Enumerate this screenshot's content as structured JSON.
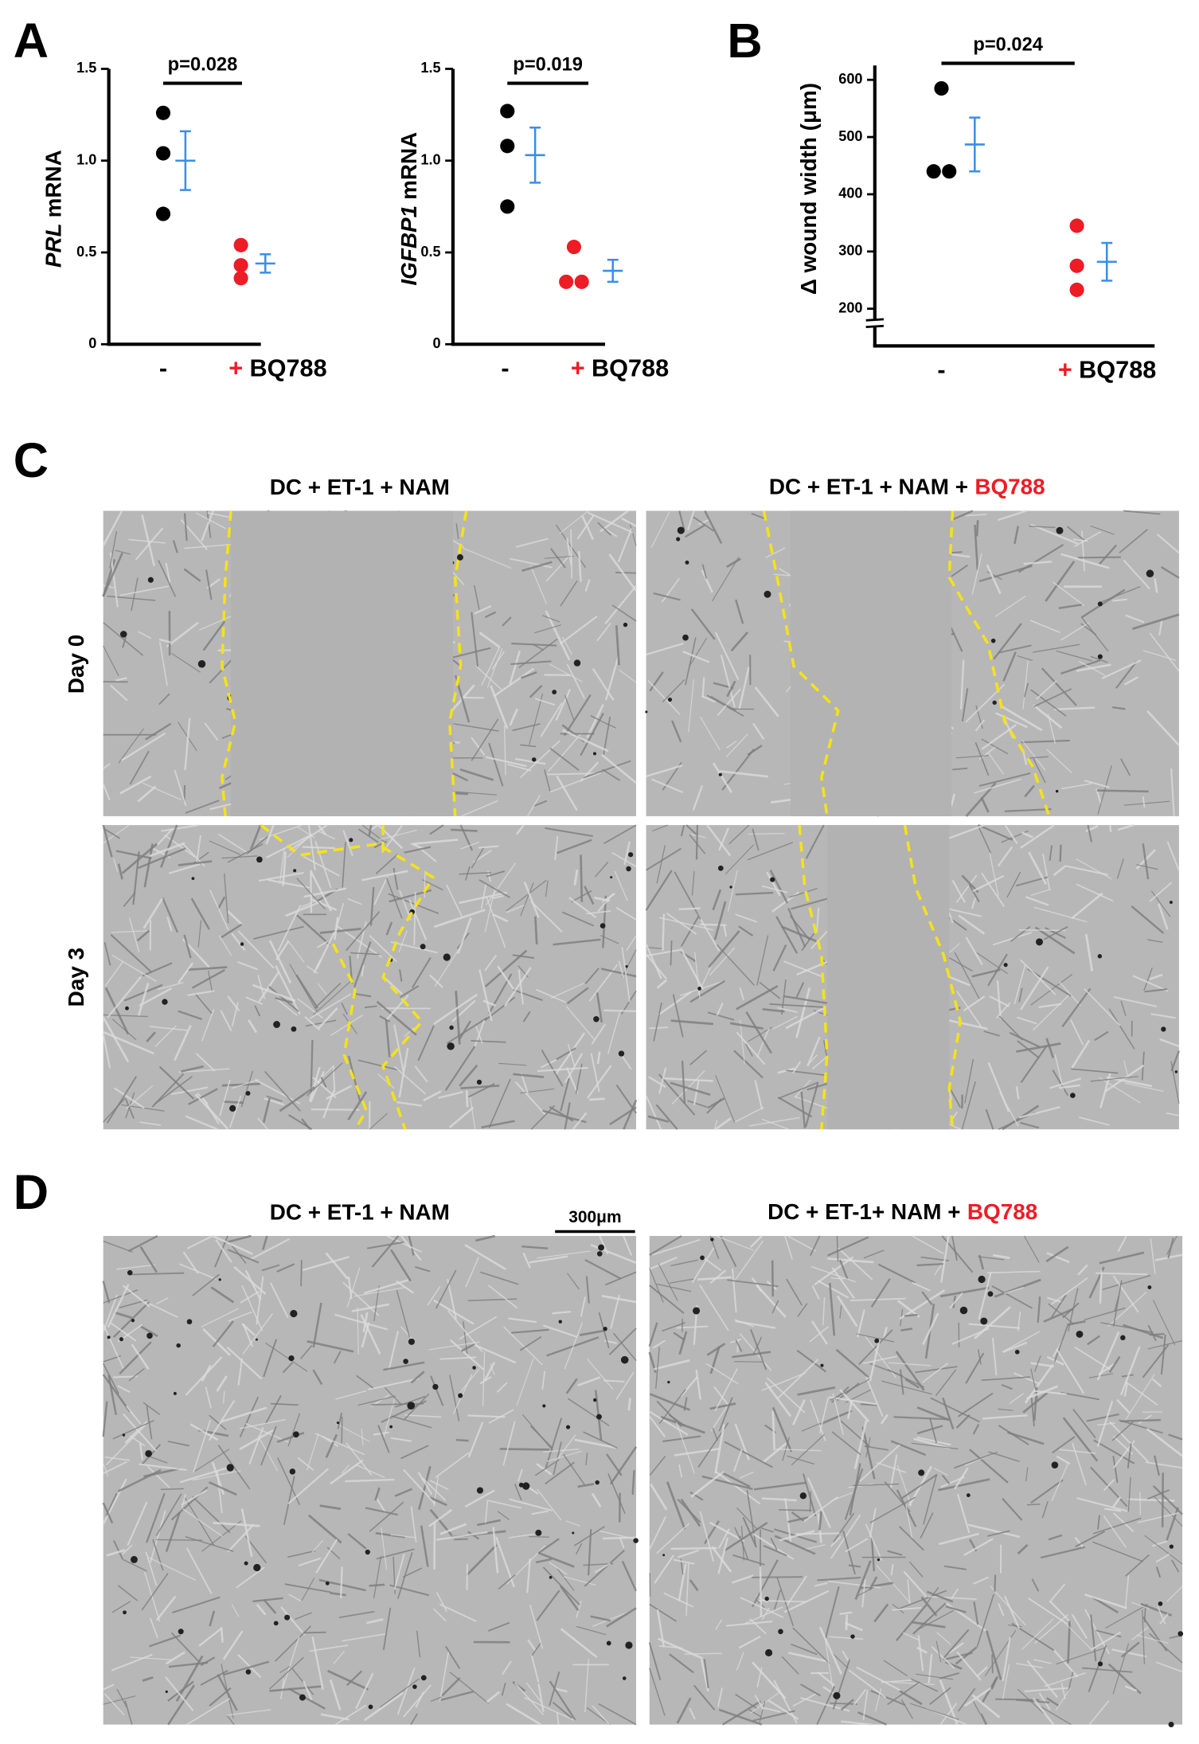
{
  "panel_a": "A",
  "panel_b": "B",
  "chart_data": [
    {
      "type": "strip",
      "ylabel_italic": "PRL",
      "ylabel": "mRNA",
      "categories": [
        "-",
        "BQ788"
      ],
      "treatment_sign": "+",
      "points": [
        [
          1.26,
          1.04,
          0.71
        ],
        [
          0.54,
          0.43,
          0.36
        ]
      ],
      "means": [
        1.0,
        0.44
      ],
      "errors": [
        0.16,
        0.05
      ],
      "point_colors": [
        "#000000",
        "#ee1c25"
      ],
      "mean_color": "#3a8ee6",
      "ylim": [
        0,
        1.5
      ],
      "yticks": [
        0,
        0.5,
        {
          "value": 1,
          "label": "1.0"
        },
        1.5
      ],
      "annotation": "p=0.028"
    },
    {
      "type": "strip",
      "ylabel_italic": "IGFBP1",
      "ylabel": "mRNA",
      "categories": [
        "-",
        "BQ788"
      ],
      "treatment_sign": "+",
      "points": [
        [
          1.27,
          1.08,
          0.75
        ],
        [
          0.53,
          0.34,
          0.34
        ]
      ],
      "means": [
        1.03,
        0.4
      ],
      "errors": [
        0.15,
        0.06
      ],
      "point_colors": [
        "#000000",
        "#ee1c25"
      ],
      "mean_color": "#3a8ee6",
      "ylim": [
        0,
        1.5
      ],
      "yticks": [
        0,
        0.5,
        {
          "value": 1,
          "label": "1.0"
        },
        1.5
      ],
      "annotation": "p=0.019"
    },
    {
      "type": "strip",
      "ylabel": "Δ wound width (μm)",
      "categories": [
        "-",
        "BQ788"
      ],
      "treatment_sign": "+",
      "points": [
        [
          585,
          440,
          440
        ],
        [
          345,
          275,
          233
        ]
      ],
      "means": [
        487,
        282
      ],
      "errors": [
        47,
        33
      ],
      "point_colors": [
        "#000000",
        "#ee1c25"
      ],
      "mean_color": "#3a8ee6",
      "ylim": [
        135,
        625
      ],
      "yticks": [
        200,
        300,
        400,
        500,
        600
      ],
      "axis_break": true,
      "annotation": "p=0.024"
    }
  ],
  "panel_c": {
    "label": "C",
    "left_title": "DC + ET-1 + NAM",
    "right_title": "DC + ET-1 + NAM +",
    "right_title_highlight": "BQ788",
    "rows": [
      "Day 0",
      "Day 3"
    ]
  },
  "panel_d": {
    "label": "D",
    "left_title": "DC + ET-1 + NAM",
    "right_title": "DC + ET-1+ NAM +",
    "right_title_highlight": "BQ788",
    "scale_bar": "300μm"
  }
}
